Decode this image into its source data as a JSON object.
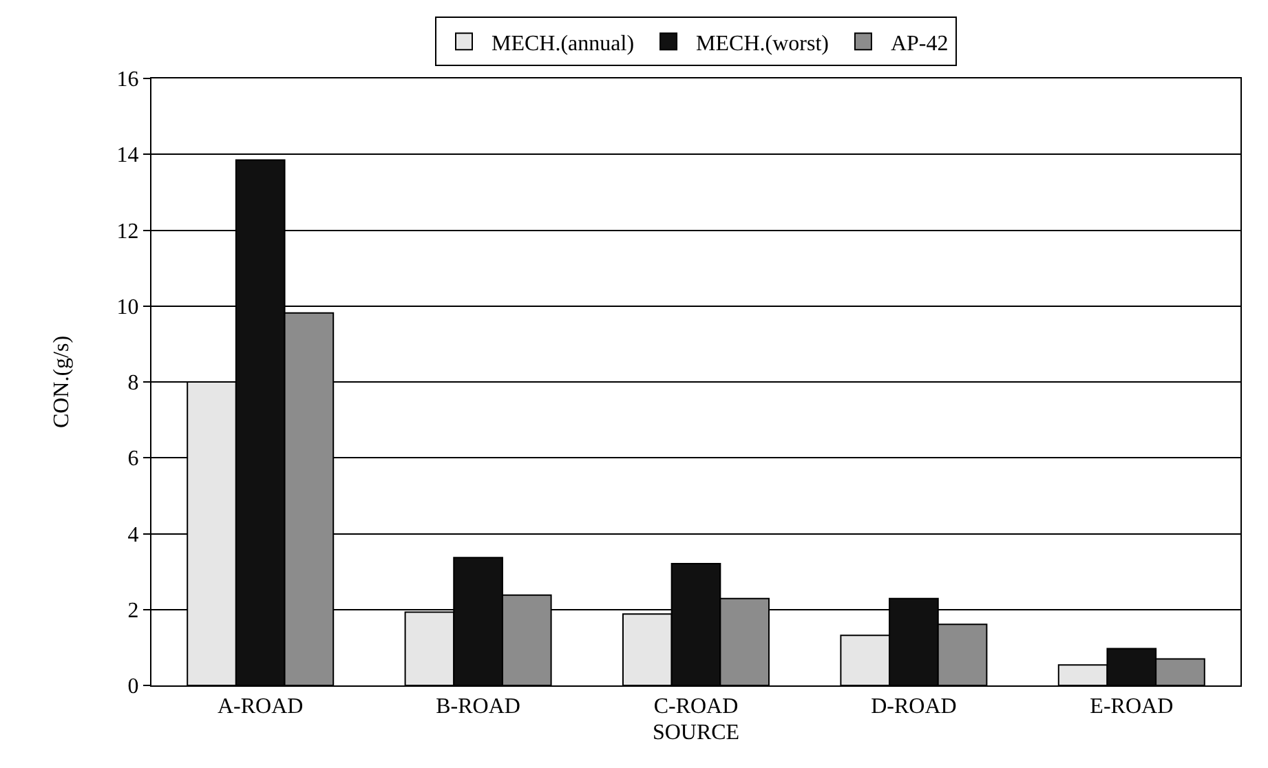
{
  "chart_data": {
    "type": "bar",
    "xlabel": "SOURCE",
    "ylabel": "CON.(g/s)",
    "categories": [
      "A-ROAD",
      "B-ROAD",
      "C-ROAD",
      "D-ROAD",
      "E-ROAD"
    ],
    "series": [
      {
        "name": "MECH.(annual)",
        "color": "#e6e6e6",
        "values": [
          8.0,
          1.93,
          1.88,
          1.32,
          0.54
        ]
      },
      {
        "name": "MECH.(worst)",
        "color": "#111111",
        "values": [
          13.85,
          3.37,
          3.21,
          2.29,
          0.97
        ]
      },
      {
        "name": "AP-42",
        "color": "#8c8c8c",
        "values": [
          9.82,
          2.38,
          2.29,
          1.61,
          0.7
        ]
      }
    ],
    "ylim": [
      0,
      16
    ],
    "yticks": [
      0,
      2,
      4,
      6,
      8,
      10,
      12,
      14,
      16
    ],
    "grid": "y",
    "legend": "top"
  }
}
